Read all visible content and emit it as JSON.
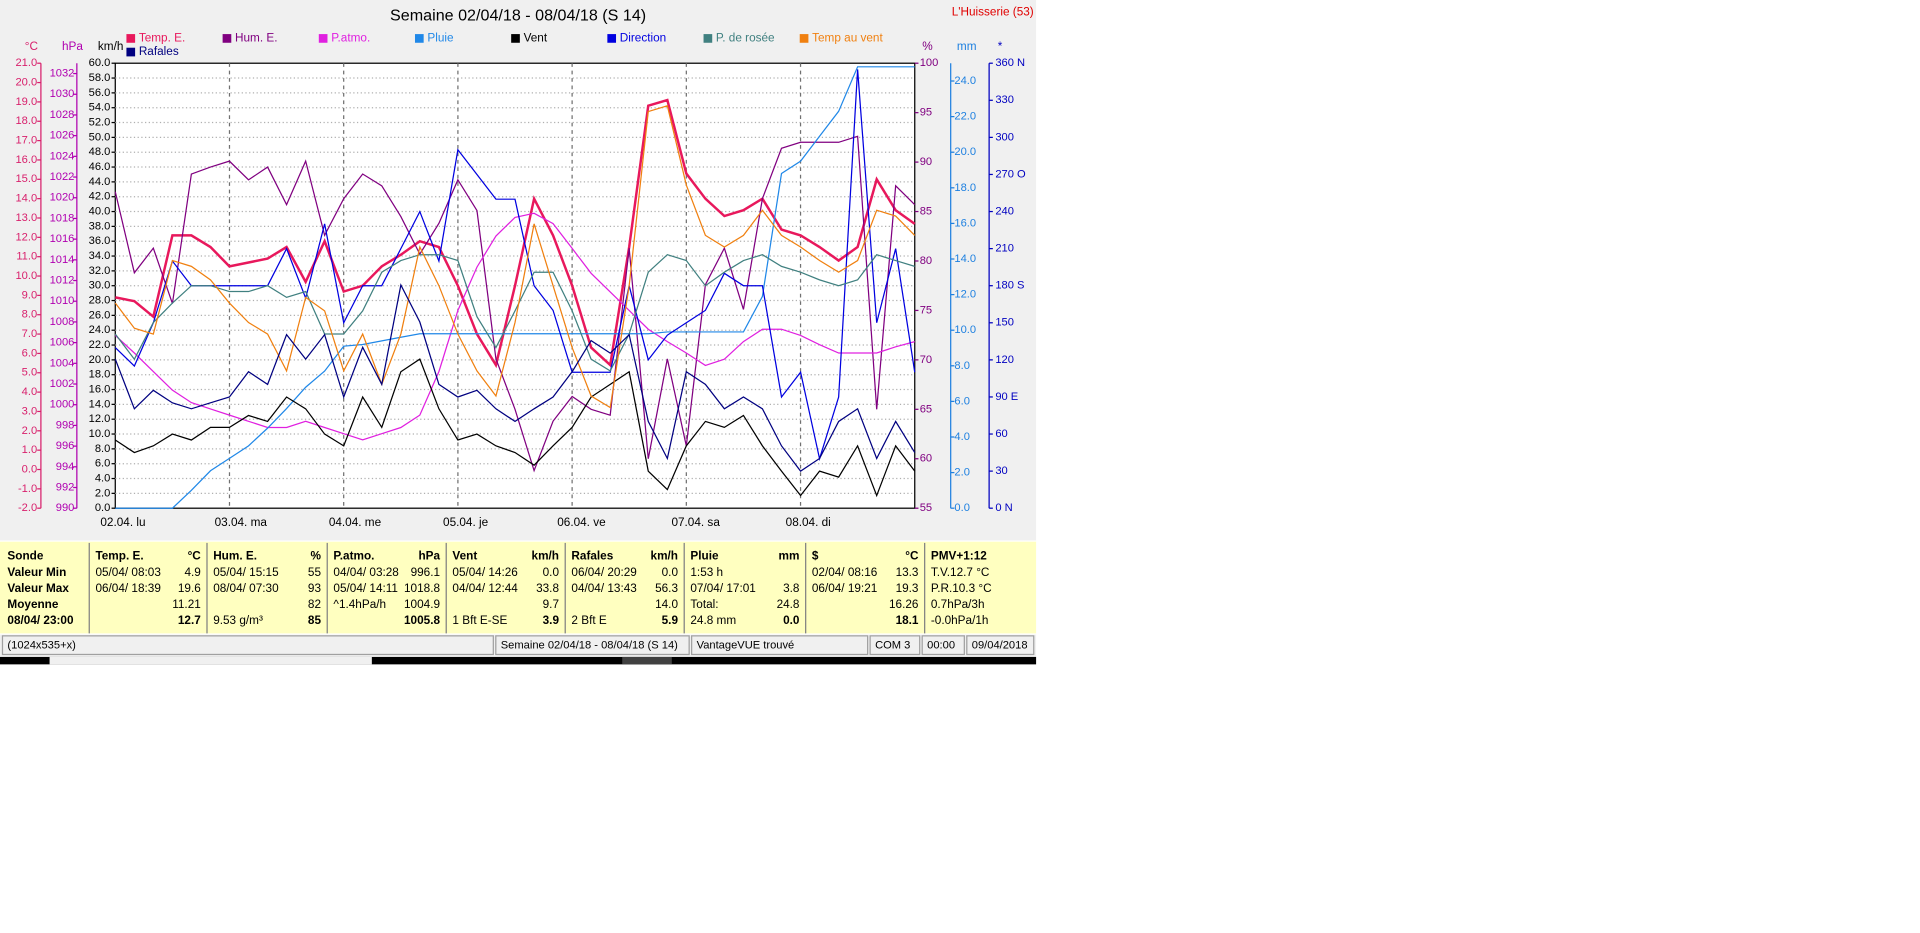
{
  "chart_data": {
    "type": "line",
    "title": "Semaine 02/04/18 - 08/04/18 (S 14)",
    "station": "L'Huisserie (53)",
    "grid": true,
    "xlim": [
      0,
      168
    ],
    "xticks": [
      {
        "value": 0,
        "label": "02.04.  lu"
      },
      {
        "value": 24,
        "label": "03.04.  ma"
      },
      {
        "value": 48,
        "label": "04.04.  me"
      },
      {
        "value": 72,
        "label": "05.04.  je"
      },
      {
        "value": 96,
        "label": "06.04.  ve"
      },
      {
        "value": 120,
        "label": "07.04.  sa"
      },
      {
        "value": 144,
        "label": "08.04.  di"
      }
    ],
    "x": [
      0,
      4,
      8,
      12,
      16,
      20,
      24,
      28,
      32,
      36,
      40,
      44,
      48,
      52,
      56,
      60,
      64,
      68,
      72,
      76,
      80,
      84,
      88,
      92,
      96,
      100,
      104,
      108,
      112,
      116,
      120,
      124,
      128,
      132,
      136,
      140,
      144,
      148,
      152,
      156,
      160,
      164,
      168
    ],
    "axes": [
      {
        "unit": "°C",
        "color": "#d8206c",
        "side": "left",
        "lim": [
          -2,
          21
        ],
        "ticks": [
          {
            "value": -2,
            "label": "-2.0"
          },
          {
            "value": -1,
            "label": "-1.0"
          },
          {
            "value": 0,
            "label": "0.0"
          },
          {
            "value": 1,
            "label": "1.0"
          },
          {
            "value": 2,
            "label": "2.0"
          },
          {
            "value": 3,
            "label": "3.0"
          },
          {
            "value": 4,
            "label": "4.0"
          },
          {
            "value": 5,
            "label": "5.0"
          },
          {
            "value": 6,
            "label": "6.0"
          },
          {
            "value": 7,
            "label": "7.0"
          },
          {
            "value": 8,
            "label": "8.0"
          },
          {
            "value": 9,
            "label": "9.0"
          },
          {
            "value": 10,
            "label": "10.0"
          },
          {
            "value": 11,
            "label": "11.0"
          },
          {
            "value": 12,
            "label": "12.0"
          },
          {
            "value": 13,
            "label": "13.0"
          },
          {
            "value": 14,
            "label": "14.0"
          },
          {
            "value": 15,
            "label": "15.0"
          },
          {
            "value": 16,
            "label": "16.0"
          },
          {
            "value": 17,
            "label": "17.0"
          },
          {
            "value": 18,
            "label": "18.0"
          },
          {
            "value": 19,
            "label": "19.0"
          },
          {
            "value": 20,
            "label": "20.0"
          },
          {
            "value": 21,
            "label": "21.0"
          }
        ]
      },
      {
        "unit": "hPa",
        "color": "#b000b0",
        "side": "left",
        "lim": [
          990,
          1033
        ],
        "ticks": [
          990,
          992,
          994,
          996,
          998,
          1000,
          1002,
          1004,
          1006,
          1008,
          1010,
          1012,
          1014,
          1016,
          1018,
          1020,
          1022,
          1024,
          1026,
          1028,
          1030,
          1032
        ]
      },
      {
        "unit": "km/h",
        "color": "#000000",
        "side": "left",
        "lim": [
          0,
          60
        ],
        "ticks": [
          {
            "value": 0,
            "label": "0.0"
          },
          {
            "value": 2,
            "label": "2.0"
          },
          {
            "value": 4,
            "label": "4.0"
          },
          {
            "value": 6,
            "label": "6.0"
          },
          {
            "value": 8,
            "label": "8.0"
          },
          {
            "value": 10,
            "label": "10.0"
          },
          {
            "value": 12,
            "label": "12.0"
          },
          {
            "value": 14,
            "label": "14.0"
          },
          {
            "value": 16,
            "label": "16.0"
          },
          {
            "value": 18,
            "label": "18.0"
          },
          {
            "value": 20,
            "label": "20.0"
          },
          {
            "value": 22,
            "label": "22.0"
          },
          {
            "value": 24,
            "label": "24.0"
          },
          {
            "value": 26,
            "label": "26.0"
          },
          {
            "value": 28,
            "label": "28.0"
          },
          {
            "value": 30,
            "label": "30.0"
          },
          {
            "value": 32,
            "label": "32.0"
          },
          {
            "value": 34,
            "label": "34.0"
          },
          {
            "value": 36,
            "label": "36.0"
          },
          {
            "value": 38,
            "label": "38.0"
          },
          {
            "value": 40,
            "label": "40.0"
          },
          {
            "value": 42,
            "label": "42.0"
          },
          {
            "value": 44,
            "label": "44.0"
          },
          {
            "value": 46,
            "label": "46.0"
          },
          {
            "value": 48,
            "label": "48.0"
          },
          {
            "value": 50,
            "label": "50.0"
          },
          {
            "value": 52,
            "label": "52.0"
          },
          {
            "value": 54,
            "label": "54.0"
          },
          {
            "value": 56,
            "label": "56.0"
          },
          {
            "value": 58,
            "label": "58.0"
          },
          {
            "value": 60,
            "label": "60.0"
          }
        ]
      },
      {
        "unit": "%",
        "color": "#800080",
        "side": "right",
        "lim": [
          55,
          100
        ],
        "ticks": [
          55,
          60,
          65,
          70,
          75,
          80,
          85,
          90,
          95,
          100
        ]
      },
      {
        "unit": "mm",
        "color": "#1e80e0",
        "side": "right",
        "lim": [
          0,
          25
        ],
        "ticks": [
          {
            "value": 0,
            "label": "0.0"
          },
          {
            "value": 2,
            "label": "2.0"
          },
          {
            "value": 4,
            "label": "4.0"
          },
          {
            "value": 6,
            "label": "6.0"
          },
          {
            "value": 8,
            "label": "8.0"
          },
          {
            "value": 10,
            "label": "10.0"
          },
          {
            "value": 12,
            "label": "12.0"
          },
          {
            "value": 14,
            "label": "14.0"
          },
          {
            "value": 16,
            "label": "16.0"
          },
          {
            "value": 18,
            "label": "18.0"
          },
          {
            "value": 20,
            "label": "20.0"
          },
          {
            "value": 22,
            "label": "22.0"
          },
          {
            "value": 24,
            "label": "24.0"
          }
        ]
      },
      {
        "unit": "*",
        "color": "#0000c0",
        "side": "right",
        "lim": [
          0,
          360
        ],
        "ticks": [
          {
            "value": 0,
            "label": "0   N"
          },
          30,
          60,
          {
            "value": 90,
            "label": "90  E"
          },
          120,
          150,
          {
            "value": 180,
            "label": "180 S"
          },
          210,
          240,
          {
            "value": 270,
            "label": "270 O"
          },
          300,
          330,
          {
            "value": 360,
            "label": "360 N"
          }
        ]
      }
    ],
    "series": [
      {
        "name": "Temp. E.",
        "color": "#e8185c",
        "axis": 0,
        "width": 2,
        "values": [
          8.9,
          8.7,
          7.9,
          12.1,
          12.1,
          11.5,
          10.5,
          10.7,
          10.9,
          11.5,
          9.7,
          11.8,
          9.2,
          9.5,
          10.5,
          11.1,
          11.8,
          11.5,
          9.5,
          7.0,
          5.4,
          9.5,
          14.0,
          12.1,
          9.5,
          6.3,
          5.4,
          11.5,
          18.8,
          19.1,
          15.3,
          14.0,
          13.1,
          13.4,
          14.0,
          12.4,
          12.1,
          11.5,
          10.8,
          11.5,
          15.0,
          13.4,
          12.7
        ]
      },
      {
        "name": "Hum. E.",
        "color": "#800080",
        "axis": 3,
        "width": 1,
        "values": [
          87.0,
          78.8,
          81.3,
          75.7,
          88.8,
          89.5,
          90.1,
          88.2,
          89.5,
          85.7,
          90.1,
          82.6,
          86.3,
          88.8,
          87.6,
          84.5,
          80.7,
          83.8,
          88.2,
          85.1,
          70.1,
          65.0,
          58.8,
          63.8,
          66.3,
          65.0,
          64.4,
          81.3,
          60.0,
          70.1,
          61.3,
          77.6,
          81.3,
          75.1,
          86.3,
          91.4,
          92.0,
          92.0,
          92.0,
          92.6,
          65.0,
          87.6,
          85.7
        ]
      },
      {
        "name": "P.atmo.",
        "color": "#e020e0",
        "axis": 1,
        "width": 1,
        "values": [
          1006.7,
          1005.0,
          1003.2,
          1001.4,
          1000.2,
          999.6,
          999.0,
          998.4,
          997.8,
          997.8,
          998.4,
          997.8,
          997.2,
          996.6,
          997.2,
          997.8,
          999.0,
          1003.2,
          1009.1,
          1013.3,
          1016.3,
          1018.1,
          1018.5,
          1017.5,
          1015.1,
          1012.7,
          1010.9,
          1009.1,
          1007.3,
          1006.1,
          1005.0,
          1003.8,
          1004.4,
          1006.1,
          1007.3,
          1007.3,
          1006.7,
          1005.8,
          1005.0,
          1005.0,
          1005.0,
          1005.6,
          1006.1
        ]
      },
      {
        "name": "Pluie",
        "color": "#2088e8",
        "axis": 4,
        "width": 1,
        "values": [
          0,
          0,
          0,
          0,
          1.0,
          2.1,
          2.8,
          3.5,
          4.5,
          5.6,
          6.8,
          7.7,
          9.1,
          9.2,
          9.4,
          9.6,
          9.8,
          9.8,
          9.8,
          9.8,
          9.8,
          9.8,
          9.8,
          9.8,
          9.8,
          9.8,
          9.8,
          9.8,
          9.8,
          9.9,
          9.9,
          9.9,
          9.9,
          9.9,
          11.9,
          18.8,
          19.5,
          20.9,
          22.3,
          24.8,
          24.8,
          24.8,
          24.8
        ]
      },
      {
        "name": "Vent",
        "color": "#000000",
        "axis": 2,
        "width": 1,
        "values": [
          9.2,
          7.5,
          8.4,
          10.0,
          9.2,
          10.9,
          10.9,
          12.5,
          11.7,
          15.0,
          13.4,
          10.0,
          8.4,
          15.0,
          10.9,
          18.4,
          20.1,
          13.4,
          9.2,
          10.0,
          8.4,
          7.5,
          5.8,
          8.4,
          10.9,
          15.0,
          16.7,
          18.4,
          5.0,
          2.5,
          8.4,
          11.7,
          10.9,
          12.5,
          8.4,
          5.0,
          1.7,
          5.0,
          4.2,
          8.4,
          1.7,
          8.4,
          5.0
        ]
      },
      {
        "name": "Direction",
        "color": "#0000e0",
        "axis": 5,
        "width": 1,
        "values": [
          130,
          115,
          150,
          200,
          180,
          180,
          180,
          180,
          180,
          210,
          170,
          230,
          150,
          180,
          180,
          210,
          240,
          200,
          290,
          270,
          250,
          250,
          180,
          160,
          110,
          110,
          110,
          180,
          120,
          140,
          150,
          160,
          190,
          180,
          180,
          90,
          110,
          40,
          90,
          355,
          150,
          210,
          110
        ]
      },
      {
        "name": "P. de rosée",
        "color": "#408080",
        "axis": 0,
        "width": 1,
        "values": [
          7.0,
          5.7,
          7.6,
          8.6,
          9.5,
          9.5,
          9.2,
          9.2,
          9.5,
          8.9,
          9.2,
          7.0,
          7.0,
          8.2,
          10.2,
          10.8,
          11.1,
          11.1,
          10.8,
          7.9,
          6.3,
          8.2,
          10.2,
          10.2,
          8.2,
          5.7,
          5.1,
          7.0,
          10.2,
          11.1,
          10.8,
          9.5,
          10.2,
          10.8,
          11.1,
          10.5,
          10.2,
          9.8,
          9.5,
          9.8,
          11.1,
          10.8,
          10.5
        ]
      },
      {
        "name": "Temp au vent",
        "color": "#f08010",
        "axis": 0,
        "width": 1,
        "values": [
          8.6,
          7.3,
          7.0,
          10.8,
          10.5,
          9.8,
          8.6,
          7.6,
          7.0,
          5.1,
          8.9,
          8.2,
          5.1,
          7.0,
          4.4,
          7.0,
          11.5,
          9.5,
          7.0,
          5.1,
          3.8,
          7.6,
          12.7,
          9.5,
          6.3,
          3.8,
          3.2,
          9.5,
          18.5,
          18.8,
          14.7,
          12.1,
          11.5,
          12.1,
          13.4,
          12.1,
          11.5,
          10.8,
          10.2,
          10.8,
          13.4,
          13.1,
          12.1
        ]
      },
      {
        "name": "Rafales",
        "color": "#000080",
        "axis": 2,
        "width": 1,
        "values": [
          20.1,
          13.4,
          15.9,
          14.2,
          13.4,
          14.2,
          15.0,
          18.4,
          16.7,
          23.4,
          20.1,
          23.4,
          15.0,
          21.7,
          16.7,
          30.1,
          25.1,
          16.7,
          15.0,
          15.9,
          13.4,
          11.7,
          13.4,
          15.0,
          18.4,
          22.6,
          20.9,
          23.4,
          11.7,
          6.7,
          18.4,
          16.7,
          13.4,
          15.0,
          13.4,
          8.4,
          5.0,
          6.7,
          11.7,
          13.4,
          6.7,
          11.7,
          7.5
        ]
      }
    ]
  },
  "summary_table": {
    "row_labels": [
      "Sonde",
      "Valeur Min",
      "Valeur Max",
      "Moyenne",
      "08/04/ 23:00"
    ],
    "columns": [
      {
        "title": "Temp. E.",
        "unit": "°C",
        "cells": [
          {
            "note": "05/04/  08:03",
            "value": "4.9"
          },
          {
            "note": "06/04/  18:39",
            "value": "19.6"
          },
          {
            "value": "11.21"
          },
          {
            "value": "12.7"
          }
        ]
      },
      {
        "title": "Hum. E.",
        "unit": "%",
        "cells": [
          {
            "note": "05/04/  15:15",
            "value": "55"
          },
          {
            "note": "08/04/  07:30",
            "value": "93"
          },
          {
            "value": "82"
          },
          {
            "note": "9.53 g/m³",
            "value": "85"
          }
        ]
      },
      {
        "title": "P.atmo.",
        "unit": "hPa",
        "cells": [
          {
            "note": "04/04/  03:28",
            "value": "996.1"
          },
          {
            "note": "05/04/  14:11",
            "value": "1018.8"
          },
          {
            "note": "^1.4hPa/h",
            "value": "1004.9"
          },
          {
            "value": "1005.8"
          }
        ]
      },
      {
        "title": "Vent",
        "unit": "km/h",
        "cells": [
          {
            "note": "05/04/  14:26",
            "value": "0.0"
          },
          {
            "note": "04/04/  12:44",
            "value": "33.8"
          },
          {
            "value": "9.7"
          },
          {
            "note": "1 Bft E-SE",
            "value": "3.9"
          }
        ]
      },
      {
        "title": "Rafales",
        "unit": "km/h",
        "cells": [
          {
            "note": "06/04/  20:29",
            "value": "0.0"
          },
          {
            "note": "04/04/  13:43",
            "value": "56.3"
          },
          {
            "value": "14.0"
          },
          {
            "note": "2 Bft E",
            "value": "5.9"
          }
        ]
      },
      {
        "title": "Pluie",
        "unit": "mm",
        "cells": [
          {
            "note": "1:53 h"
          },
          {
            "note": "07/04/  17:01",
            "value": "3.8"
          },
          {
            "note": "Total:",
            "value": "24.8"
          },
          {
            "note": "24.8 mm",
            "value": "0.0"
          }
        ]
      },
      {
        "title": "$",
        "unit": "°C",
        "cells": [
          {
            "note": "02/04/  08:16",
            "value": "13.3"
          },
          {
            "note": "06/04/  19:21",
            "value": "19.3"
          },
          {
            "value": "16.26"
          },
          {
            "value": "18.1"
          }
        ]
      },
      {
        "title": "PMV+1:12",
        "cells": [
          {
            "note": "T.V.12.7 °C"
          },
          {
            "note": "P.R.10.3 °C"
          },
          {
            "note": "0.7hPa/3h"
          },
          {
            "note": "-0.0hPa/1h"
          }
        ]
      }
    ]
  },
  "status_bar": [
    "(1024x535+x)",
    "Semaine 02/04/18 - 08/04/18 (S 14)",
    "VantageVUE trouvé",
    "COM 3",
    "00:00",
    "09/04/2018"
  ]
}
